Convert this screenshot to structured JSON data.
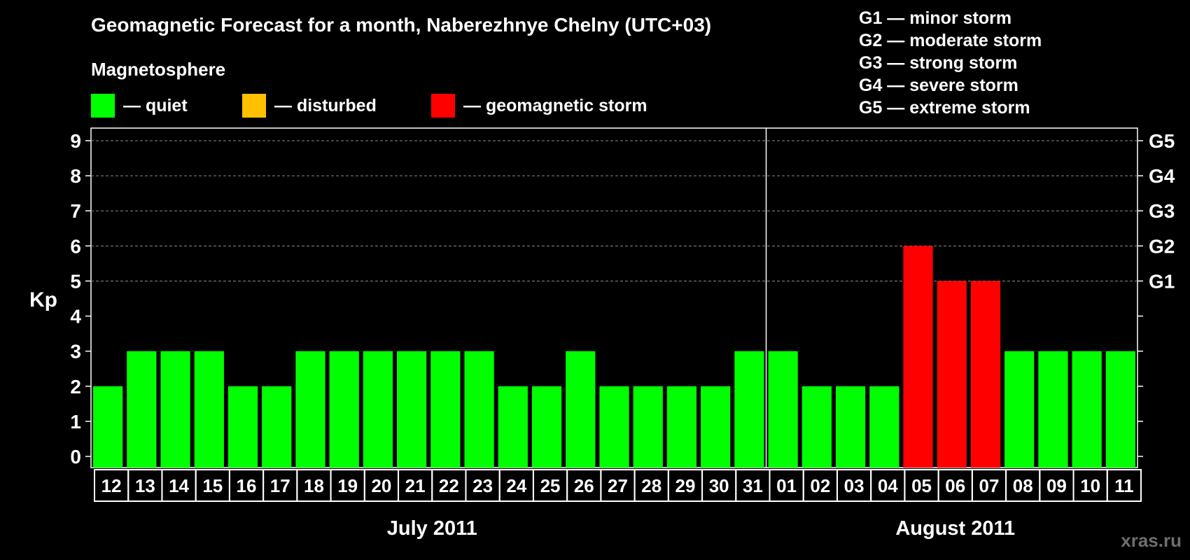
{
  "title": "Geomagnetic Forecast for a month, Naberezhnye Chelny (UTC+03)",
  "legend": {
    "heading": "Magnetosphere",
    "items": [
      {
        "label": "— quiet",
        "color": "#00ff00"
      },
      {
        "label": "— disturbed",
        "color": "#ffc000"
      },
      {
        "label": "— geomagnetic storm",
        "color": "#ff0000"
      }
    ]
  },
  "storm_scale": [
    "G1 — minor storm",
    "G2 — moderate storm",
    "G3 — strong storm",
    "G4 — severe storm",
    "G5 — extreme storm"
  ],
  "watermark": "xras.ru",
  "chart_data": {
    "type": "bar",
    "ylabel": "Kp",
    "ylim": [
      0,
      9
    ],
    "yticks": [
      "0",
      "1",
      "2",
      "3",
      "4",
      "5",
      "6",
      "7",
      "8",
      "9"
    ],
    "right_axis": [
      {
        "value": 5,
        "label": "G1"
      },
      {
        "value": 6,
        "label": "G2"
      },
      {
        "value": 7,
        "label": "G3"
      },
      {
        "value": 8,
        "label": "G4"
      },
      {
        "value": 9,
        "label": "G5"
      }
    ],
    "grid": true,
    "categories": [
      "12",
      "13",
      "14",
      "15",
      "16",
      "17",
      "18",
      "19",
      "20",
      "21",
      "22",
      "23",
      "24",
      "25",
      "26",
      "27",
      "28",
      "29",
      "30",
      "31",
      "01",
      "02",
      "03",
      "04",
      "05",
      "06",
      "07",
      "08",
      "09",
      "10",
      "11"
    ],
    "values": [
      2,
      3,
      3,
      3,
      2,
      2,
      3,
      3,
      3,
      3,
      3,
      3,
      2,
      2,
      3,
      2,
      2,
      2,
      2,
      3,
      3,
      2,
      2,
      2,
      6,
      5,
      5,
      3,
      3,
      3,
      3
    ],
    "status": [
      "quiet",
      "quiet",
      "quiet",
      "quiet",
      "quiet",
      "quiet",
      "quiet",
      "quiet",
      "quiet",
      "quiet",
      "quiet",
      "quiet",
      "quiet",
      "quiet",
      "quiet",
      "quiet",
      "quiet",
      "quiet",
      "quiet",
      "quiet",
      "quiet",
      "quiet",
      "quiet",
      "quiet",
      "storm",
      "storm",
      "storm",
      "quiet",
      "quiet",
      "quiet",
      "quiet"
    ],
    "status_colors": {
      "quiet": "#00ff00",
      "disturbed": "#ffc000",
      "storm": "#ff0000"
    },
    "months": [
      {
        "label": "July 2011",
        "start_index": 0,
        "end_index": 19
      },
      {
        "label": "August 2011",
        "start_index": 20,
        "end_index": 30
      }
    ]
  }
}
